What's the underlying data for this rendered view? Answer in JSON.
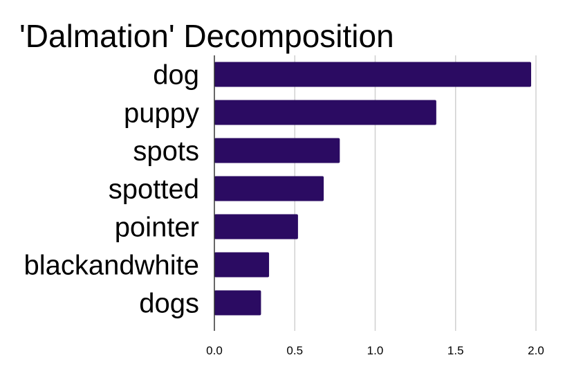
{
  "chart_data": {
    "type": "bar",
    "orientation": "horizontal",
    "title": "'Dalmation' Decomposition",
    "xlabel": "",
    "ylabel": "",
    "categories": [
      "dog",
      "puppy",
      "spots",
      "spotted",
      "pointer",
      "blackandwhite",
      "dogs"
    ],
    "values": [
      1.97,
      1.38,
      0.78,
      0.68,
      0.52,
      0.34,
      0.29
    ],
    "xlim": [
      0,
      2.0
    ],
    "xticks": [
      "0.0",
      "0.5",
      "1.0",
      "1.5",
      "2.0"
    ],
    "grid": true,
    "legend": "none",
    "bar_color": "#2b0b62"
  }
}
